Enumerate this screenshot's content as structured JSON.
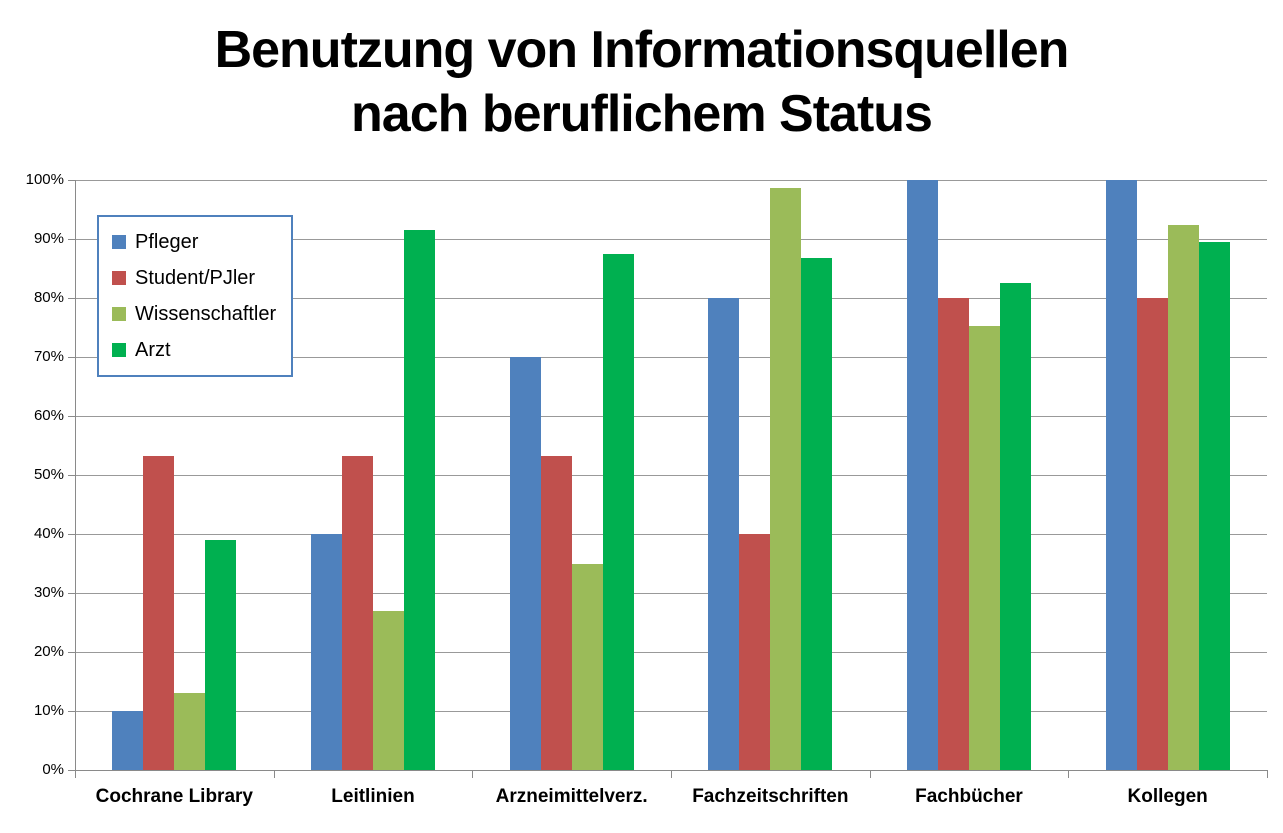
{
  "title": {
    "line1": "Benutzung von Informationsquellen",
    "line2": "nach beruflichem Status"
  },
  "chart_data": {
    "type": "bar",
    "title": "Benutzung von Informationsquellen nach beruflichem Status",
    "categories": [
      "Cochrane Library",
      "Leitlinien",
      "Arzneimittelverz.",
      "Fachzeitschriften",
      "Fachbücher",
      "Kollegen"
    ],
    "series": [
      {
        "name": "Pfleger",
        "color": "#4F81BD",
        "values": [
          10,
          40,
          70,
          80,
          100,
          100
        ]
      },
      {
        "name": "Student/PJler",
        "color": "#C0504D",
        "values": [
          53.3,
          53.3,
          53.3,
          40,
          80,
          80
        ]
      },
      {
        "name": "Wissenschaftler",
        "color": "#9BBB59",
        "values": [
          13,
          27,
          35,
          98.7,
          75.3,
          92.3
        ]
      },
      {
        "name": "Arzt",
        "color": "#00B050",
        "values": [
          39,
          91.5,
          87.5,
          86.7,
          82.5,
          89.5
        ]
      }
    ],
    "y_axis": {
      "min": 0,
      "max": 100,
      "step": 10,
      "tick_labels": [
        "0%",
        "10%",
        "20%",
        "30%",
        "40%",
        "50%",
        "60%",
        "70%",
        "80%",
        "90%",
        "100%"
      ]
    },
    "xlabel": "",
    "ylabel": "",
    "grid": true,
    "legend_position": "top-left",
    "gridline_color": "#999999",
    "legend_border_color": "#4F81BD"
  }
}
